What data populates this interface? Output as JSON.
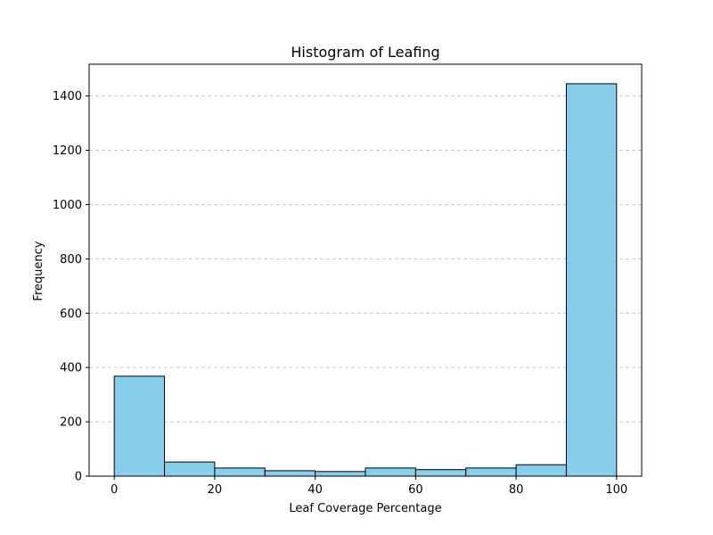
{
  "chart_data": {
    "type": "bar",
    "title": "Histogram of Leafing",
    "xlabel": "Leaf Coverage Percentage",
    "ylabel": "Frequency",
    "bin_edges": [
      0,
      10,
      20,
      30,
      40,
      50,
      60,
      70,
      80,
      90,
      100
    ],
    "values": [
      368,
      52,
      30,
      20,
      17,
      30,
      24,
      30,
      42,
      1445
    ],
    "xlim": [
      -5,
      105
    ],
    "ylim": [
      0,
      1517
    ],
    "x_ticks": [
      0,
      20,
      40,
      60,
      80,
      100
    ],
    "y_ticks": [
      0,
      200,
      400,
      600,
      800,
      1000,
      1200,
      1400
    ],
    "grid": "y-dashed",
    "legend": "none",
    "colors": {
      "bar_fill": "#87ceeb",
      "bar_edge": "#000000",
      "grid": "#c8c8c8"
    }
  }
}
